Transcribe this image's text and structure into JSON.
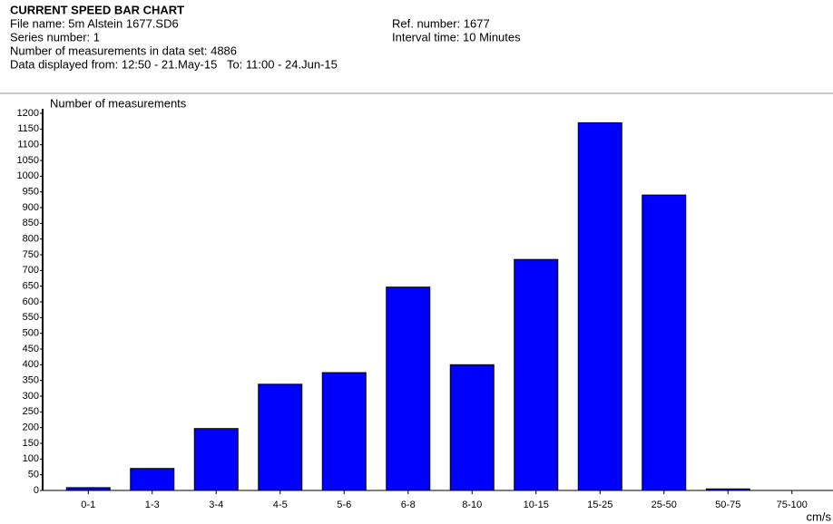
{
  "chart_data": {
    "type": "bar",
    "title": "CURRENT SPEED BAR CHART",
    "file_name": "File name: 5m Alstein 1677.SD6",
    "ref_number": "Ref. number: 1677",
    "series_number": "Series number: 1",
    "interval_time": "Interval time: 10 Minutes",
    "measurements": "Number of measurements in data set: 4886",
    "data_range": "Data displayed from: 12:50 - 21.May-15   To: 11:00 - 24.Jun-15",
    "ylabel": "Number of measurements",
    "xlabel": "cm/s",
    "categories": [
      "0-1",
      "1-3",
      "3-4",
      "4-5",
      "5-6",
      "6-8",
      "8-10",
      "10-15",
      "15-25",
      "25-50",
      "50-75",
      "75-100"
    ],
    "values": [
      9,
      70,
      197,
      338,
      375,
      647,
      400,
      735,
      1170,
      940,
      5,
      0
    ],
    "color": "#0000ff",
    "ylim": [
      0,
      1200
    ],
    "yticks": [
      0,
      50,
      100,
      150,
      200,
      250,
      300,
      350,
      400,
      450,
      500,
      550,
      600,
      650,
      700,
      750,
      800,
      850,
      900,
      950,
      1000,
      1050,
      1100,
      1150,
      1200
    ],
    "grid": false
  }
}
